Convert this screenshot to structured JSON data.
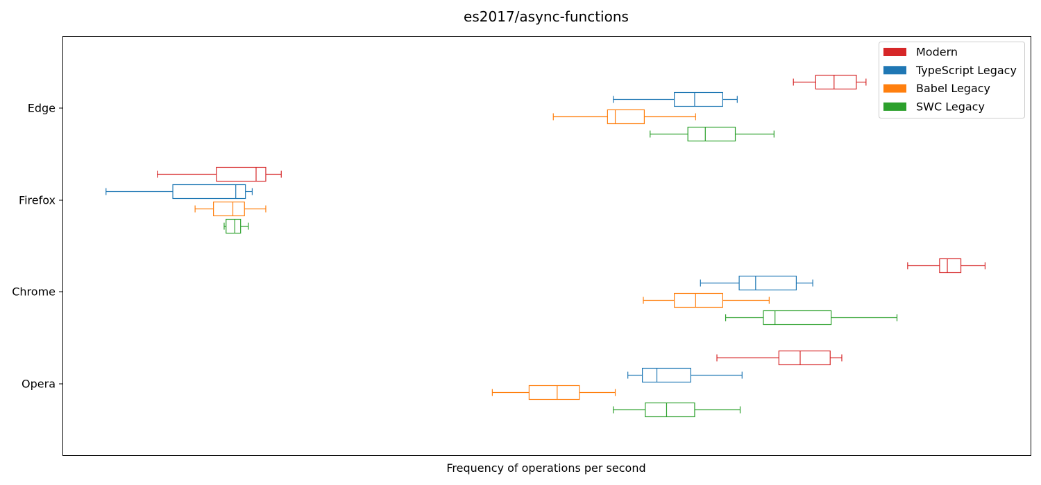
{
  "chart_data": {
    "type": "boxplot",
    "orientation": "horizontal",
    "title": "es2017/async-functions",
    "xlabel": "Frequency of operations per second",
    "ylabel": "",
    "x_ticks_visible": false,
    "xlim": [
      0,
      1000
    ],
    "grid": false,
    "legend_position": "top-right",
    "categories": [
      "Edge",
      "Firefox",
      "Chrome",
      "Opera"
    ],
    "series": [
      {
        "name": "Modern",
        "color": "#d62728",
        "boxes": [
          {
            "category": "Edge",
            "whisker_low": 755,
            "q1": 778,
            "median": 797,
            "q3": 820,
            "whisker_high": 830
          },
          {
            "category": "Firefox",
            "whisker_low": 98,
            "q1": 159,
            "median": 200,
            "q3": 210,
            "whisker_high": 226
          },
          {
            "category": "Chrome",
            "whisker_low": 873,
            "q1": 906,
            "median": 914,
            "q3": 928,
            "whisker_high": 953
          },
          {
            "category": "Opera",
            "whisker_low": 676,
            "q1": 740,
            "median": 762,
            "q3": 793,
            "whisker_high": 805
          }
        ]
      },
      {
        "name": "TypeScript Legacy",
        "color": "#1f77b4",
        "boxes": [
          {
            "category": "Edge",
            "whisker_low": 569,
            "q1": 632,
            "median": 653,
            "q3": 682,
            "whisker_high": 697
          },
          {
            "category": "Firefox",
            "whisker_low": 45,
            "q1": 114,
            "median": 179,
            "q3": 189,
            "whisker_high": 196
          },
          {
            "category": "Chrome",
            "whisker_low": 659,
            "q1": 699,
            "median": 716,
            "q3": 758,
            "whisker_high": 775
          },
          {
            "category": "Opera",
            "whisker_low": 584,
            "q1": 599,
            "median": 614,
            "q3": 649,
            "whisker_high": 702
          }
        ]
      },
      {
        "name": "Babel Legacy",
        "color": "#ff7f0e",
        "boxes": [
          {
            "category": "Edge",
            "whisker_low": 507,
            "q1": 563,
            "median": 571,
            "q3": 601,
            "whisker_high": 654
          },
          {
            "category": "Firefox",
            "whisker_low": 137,
            "q1": 156,
            "median": 176,
            "q3": 188,
            "whisker_high": 210
          },
          {
            "category": "Chrome",
            "whisker_low": 600,
            "q1": 632,
            "median": 654,
            "q3": 682,
            "whisker_high": 730
          },
          {
            "category": "Opera",
            "whisker_low": 444,
            "q1": 482,
            "median": 511,
            "q3": 534,
            "whisker_high": 571
          }
        ]
      },
      {
        "name": "SWC Legacy",
        "color": "#2ca02c",
        "boxes": [
          {
            "category": "Edge",
            "whisker_low": 607,
            "q1": 646,
            "median": 664,
            "q3": 695,
            "whisker_high": 735
          },
          {
            "category": "Firefox",
            "whisker_low": 167,
            "q1": 169,
            "median": 178,
            "q3": 184,
            "whisker_high": 192
          },
          {
            "category": "Chrome",
            "whisker_low": 685,
            "q1": 724,
            "median": 736,
            "q3": 794,
            "whisker_high": 862
          },
          {
            "category": "Opera",
            "whisker_low": 569,
            "q1": 602,
            "median": 624,
            "q3": 653,
            "whisker_high": 700
          }
        ]
      }
    ]
  }
}
